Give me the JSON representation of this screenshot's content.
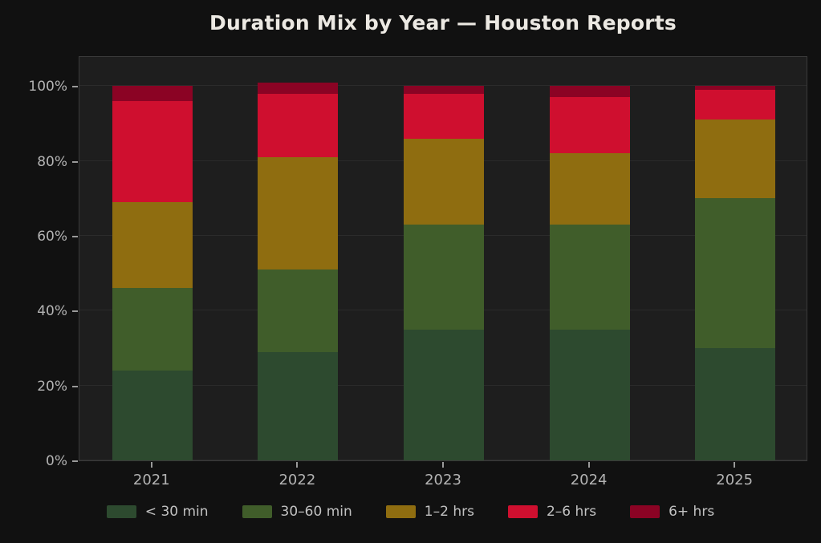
{
  "title": "Duration Mix by Year — Houston Reports",
  "palette": {
    "page_background": "#111111",
    "plot_background": "#1e1e1e",
    "gridline": "#2b2b2b",
    "spine": "#3a3a3a",
    "tick_mark": "#9a9a9a",
    "tick_label": "#b3b3b3",
    "title_text": "#ece9e3",
    "legend_text": "#c2c2c2"
  },
  "chart_data": {
    "type": "bar",
    "stacked": true,
    "percent_stacked": true,
    "title": "Duration Mix by Year — Houston Reports",
    "xlabel": "",
    "ylabel": "",
    "categories": [
      "2021",
      "2022",
      "2023",
      "2024",
      "2025"
    ],
    "series": [
      {
        "name": "< 30 min",
        "color": "#2d4a2f",
        "values": [
          24,
          29,
          35,
          35,
          30
        ]
      },
      {
        "name": "30–60 min",
        "color": "#405d2a",
        "values": [
          22,
          22,
          28,
          28,
          40
        ]
      },
      {
        "name": "1–2 hrs",
        "color": "#8f6d10",
        "values": [
          23,
          30,
          23,
          19,
          21
        ]
      },
      {
        "name": "2–6 hrs",
        "color": "#cf0f2f",
        "values": [
          27,
          17,
          12,
          15,
          8
        ]
      },
      {
        "name": "6+ hrs",
        "color": "#8b0324",
        "values": [
          4,
          3,
          2,
          3,
          1
        ]
      }
    ],
    "y_ticks": [
      {
        "value": 0,
        "label": "0%"
      },
      {
        "value": 20,
        "label": "20%"
      },
      {
        "value": 40,
        "label": "40%"
      },
      {
        "value": 60,
        "label": "60%"
      },
      {
        "value": 80,
        "label": "80%"
      },
      {
        "value": 100,
        "label": "100%"
      }
    ],
    "ylim": [
      0,
      100
    ],
    "grid": true,
    "legend_position": "bottom"
  }
}
